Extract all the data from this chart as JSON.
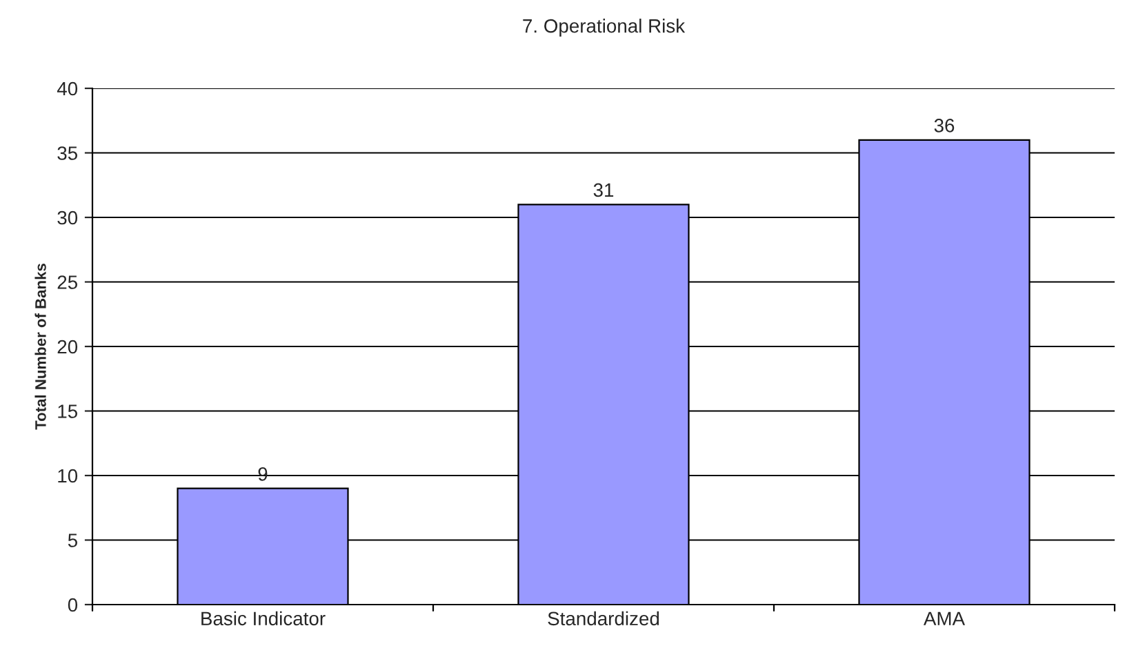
{
  "chart_data": {
    "type": "bar",
    "title": "7. Operational Risk",
    "ylabel": "Total Number of Banks",
    "categories": [
      "Basic Indicator",
      "Standardized",
      "AMA"
    ],
    "values": [
      9,
      31,
      36
    ],
    "color": "#9999ff",
    "ylim": [
      0,
      40
    ],
    "yticks": [
      0,
      5,
      10,
      15,
      20,
      25,
      30,
      35,
      40
    ],
    "grid": "y",
    "data_labels": true
  }
}
